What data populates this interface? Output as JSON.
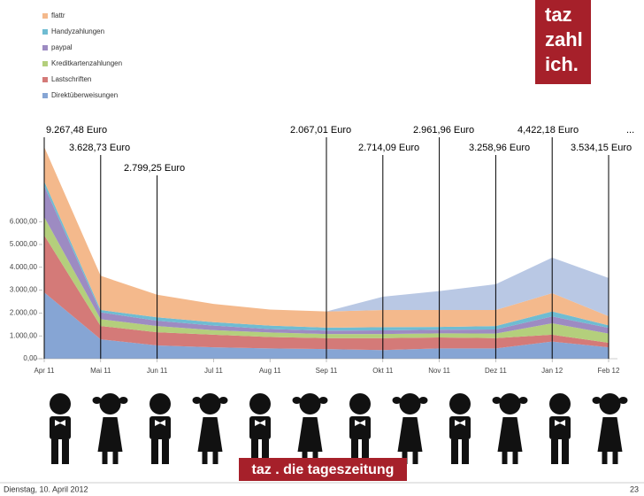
{
  "header": {
    "logo_lines": [
      "taz",
      "zahl",
      "ich."
    ]
  },
  "chart_data": {
    "type": "stacked_area",
    "categories": [
      "Apr 11",
      "Mai 11",
      "Jun 11",
      "Jul 11",
      "Aug 11",
      "Sep 11",
      "Okt 11",
      "Nov 11",
      "Dez 11",
      "Jan 12",
      "Feb 12"
    ],
    "series": [
      {
        "name": "Direktüberweisungen",
        "color": "#86a5d4",
        "values": [
          2900,
          850,
          580,
          500,
          450,
          420,
          380,
          450,
          450,
          750,
          500
        ]
      },
      {
        "name": "Lastschriften",
        "color": "#d47a78",
        "values": [
          2500,
          580,
          580,
          550,
          500,
          480,
          520,
          480,
          450,
          300,
          200
        ]
      },
      {
        "name": "Kreditkartenzahlungen",
        "color": "#b4cf7c",
        "values": [
          800,
          300,
          270,
          200,
          200,
          180,
          180,
          180,
          200,
          500,
          400
        ]
      },
      {
        "name": "paypal",
        "color": "#9d8bc2",
        "values": [
          1360,
          300,
          230,
          200,
          150,
          150,
          160,
          160,
          180,
          300,
          250
        ]
      },
      {
        "name": "Handyzahlungen",
        "color": "#6fbcd2",
        "values": [
          200,
          100,
          150,
          150,
          150,
          130,
          140,
          120,
          150,
          220,
          110
        ]
      },
      {
        "name": "flattr",
        "color": "#f4b98c",
        "values": [
          1507,
          1498,
          989,
          800,
          700,
          707,
          750,
          740,
          700,
          800,
          400
        ]
      },
      {
        "name": null,
        "color": "#b9c8e4",
        "values": [
          0,
          0,
          0,
          0,
          0,
          0,
          584,
          832,
          1129,
          1552,
          1674
        ]
      }
    ],
    "ylim": [
      0,
      10000
    ],
    "yticks": [
      {
        "value": 0,
        "label": "0,00"
      },
      {
        "value": 1000,
        "label": "1.000,00"
      },
      {
        "value": 2000,
        "label": "2.000,00"
      },
      {
        "value": 3000,
        "label": "3.000,00"
      },
      {
        "value": 4000,
        "label": "4.000,00"
      },
      {
        "value": 5000,
        "label": "5.000,00"
      },
      {
        "value": 6000,
        "label": "6.000,00"
      }
    ],
    "grid": false,
    "annotations": [
      {
        "category": "Apr 11",
        "text": "9.267,48 Euro"
      },
      {
        "category": "Mai 11",
        "text": "3.628,73 Euro"
      },
      {
        "category": "Jun 11",
        "text": "2.799,25 Euro"
      },
      {
        "category": "Sep 11",
        "text": "2.067,01 Euro"
      },
      {
        "category": "Okt 11",
        "text": "2.714,09 Euro"
      },
      {
        "category": "Nov 11",
        "text": "2.961,96  Euro"
      },
      {
        "category": "Dez 11",
        "text": "3.258,96 Euro"
      },
      {
        "category": "Jan 12",
        "text": "4,422,18 Euro"
      },
      {
        "category": "Feb 12",
        "text": "3.534,15 Euro"
      },
      {
        "text": "..."
      }
    ]
  },
  "brand": "taz . die tageszeitung",
  "footer": {
    "date": "Dienstag, 10. April 2012",
    "page": "23"
  }
}
